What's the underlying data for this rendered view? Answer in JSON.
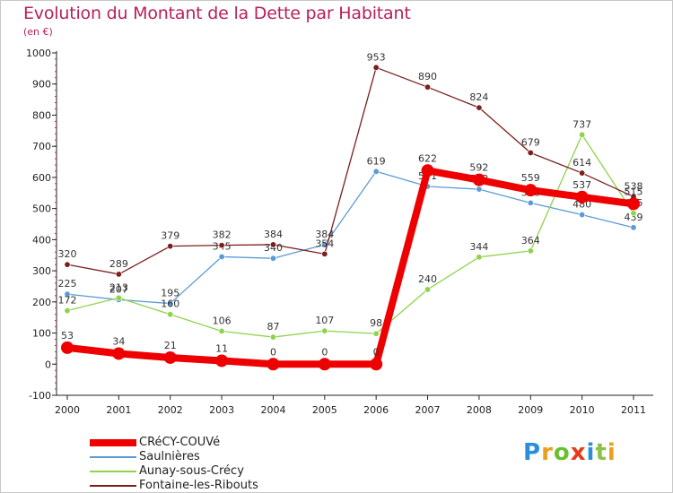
{
  "chart_data": {
    "type": "line",
    "title": "Evolution du Montant de la Dette par Habitant",
    "subtitle": "(en €)",
    "xlabel": "",
    "ylabel": "",
    "ylim": [
      -100,
      1000
    ],
    "yticks": [
      -100,
      0,
      100,
      200,
      300,
      400,
      500,
      600,
      700,
      800,
      900,
      1000
    ],
    "x": [
      "2000",
      "2001",
      "2002",
      "2003",
      "2004",
      "2005",
      "2006",
      "2007",
      "2008",
      "2009",
      "2010",
      "2011"
    ],
    "series": [
      {
        "name": "CRéCY-COUVé",
        "color": "#ee0000",
        "values": [
          53,
          34,
          21,
          11,
          0,
          0,
          0,
          622,
          592,
          559,
          537,
          515
        ]
      },
      {
        "name": "Saulnières",
        "color": "#5b9bd5",
        "values": [
          225,
          207,
          195,
          345,
          340,
          384,
          619,
          571,
          562,
          518,
          480,
          439
        ]
      },
      {
        "name": "Aunay-sous-Crécy",
        "color": "#8ed34b",
        "values": [
          172,
          213,
          160,
          106,
          87,
          107,
          98,
          240,
          344,
          364,
          737,
          485
        ]
      },
      {
        "name": "Fontaine-les-Ribouts",
        "color": "#7a1e1e",
        "values": [
          320,
          289,
          379,
          382,
          384,
          354,
          953,
          890,
          824,
          679,
          614,
          538
        ]
      }
    ]
  },
  "logo": {
    "text": "Proxiti"
  }
}
